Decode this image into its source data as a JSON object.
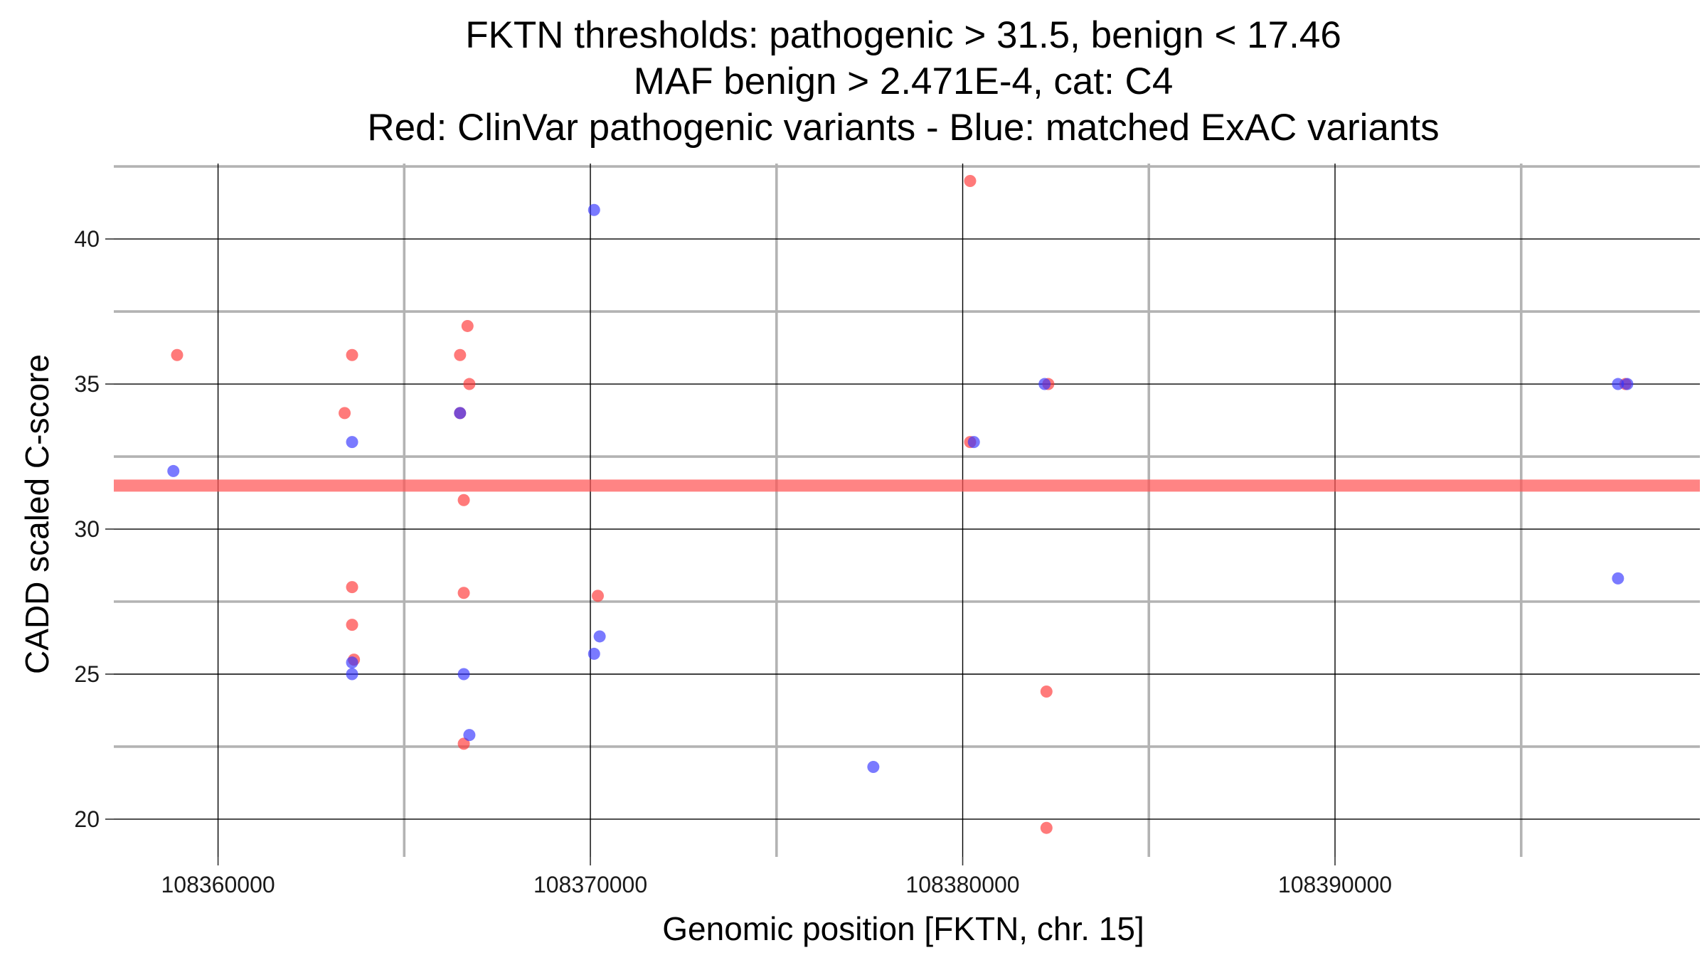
{
  "chart_data": {
    "type": "scatter",
    "title": [
      "FKTN thresholds: pathogenic > 31.5, benign < 17.46",
      "MAF benign > 2.471E-4, cat: C4",
      "Red: ClinVar pathogenic variants - Blue: matched ExAC variants"
    ],
    "xlabel": "Genomic position [FKTN, chr. 15]",
    "ylabel": "CADD scaled C-score",
    "xlim": [
      108357200,
      108399800
    ],
    "ylim": [
      18.7,
      42.6
    ],
    "x_ticks": [
      108360000,
      108370000,
      108380000,
      108390000
    ],
    "x_tick_labels": [
      "108360000",
      "108370000",
      "108380000",
      "108390000"
    ],
    "x_minor_gridlines": [
      108365000,
      108375000,
      108385000,
      108395000
    ],
    "y_ticks": [
      20,
      25,
      30,
      35,
      40
    ],
    "y_tick_labels": [
      "20",
      "25",
      "30",
      "35",
      "40"
    ],
    "y_minor_gridlines": [
      22.5,
      27.5,
      32.5,
      37.5,
      42.5
    ],
    "grid": true,
    "legend": "none",
    "threshold": {
      "y": 31.5,
      "color": "#ff5555"
    },
    "colors": {
      "pathogenic": "#ff3333",
      "benign": "#3333ff"
    },
    "point_opacity": 0.65,
    "series": [
      {
        "color": "#ff3333",
        "points": [
          [
            108358900,
            36.0
          ],
          [
            108363600,
            36.0
          ],
          [
            108363400,
            34.0
          ],
          [
            108363600,
            28.0
          ],
          [
            108363600,
            26.7
          ],
          [
            108363650,
            25.5
          ],
          [
            108366500,
            36.0
          ],
          [
            108366700,
            37.0
          ],
          [
            108366500,
            34.0
          ],
          [
            108366750,
            35.0
          ],
          [
            108366600,
            31.0
          ],
          [
            108366600,
            27.8
          ],
          [
            108366600,
            22.6
          ],
          [
            108370200,
            27.7
          ],
          [
            108380200,
            42.0
          ],
          [
            108380200,
            33.0
          ],
          [
            108382300,
            35.0
          ],
          [
            108382250,
            24.4
          ],
          [
            108382250,
            19.7
          ],
          [
            108397800,
            35.0
          ]
        ]
      },
      {
        "color": "#3333ff",
        "points": [
          [
            108358800,
            32.0
          ],
          [
            108363600,
            33.0
          ],
          [
            108363600,
            25.4
          ],
          [
            108363600,
            25.0
          ],
          [
            108366500,
            34.0
          ],
          [
            108366600,
            25.0
          ],
          [
            108366750,
            22.9
          ],
          [
            108370100,
            41.0
          ],
          [
            108370250,
            26.3
          ],
          [
            108370100,
            25.7
          ],
          [
            108377600,
            21.8
          ],
          [
            108380300,
            33.0
          ],
          [
            108382200,
            35.0
          ],
          [
            108397600,
            35.0
          ],
          [
            108397600,
            28.3
          ],
          [
            108397850,
            35.0
          ]
        ]
      }
    ]
  }
}
